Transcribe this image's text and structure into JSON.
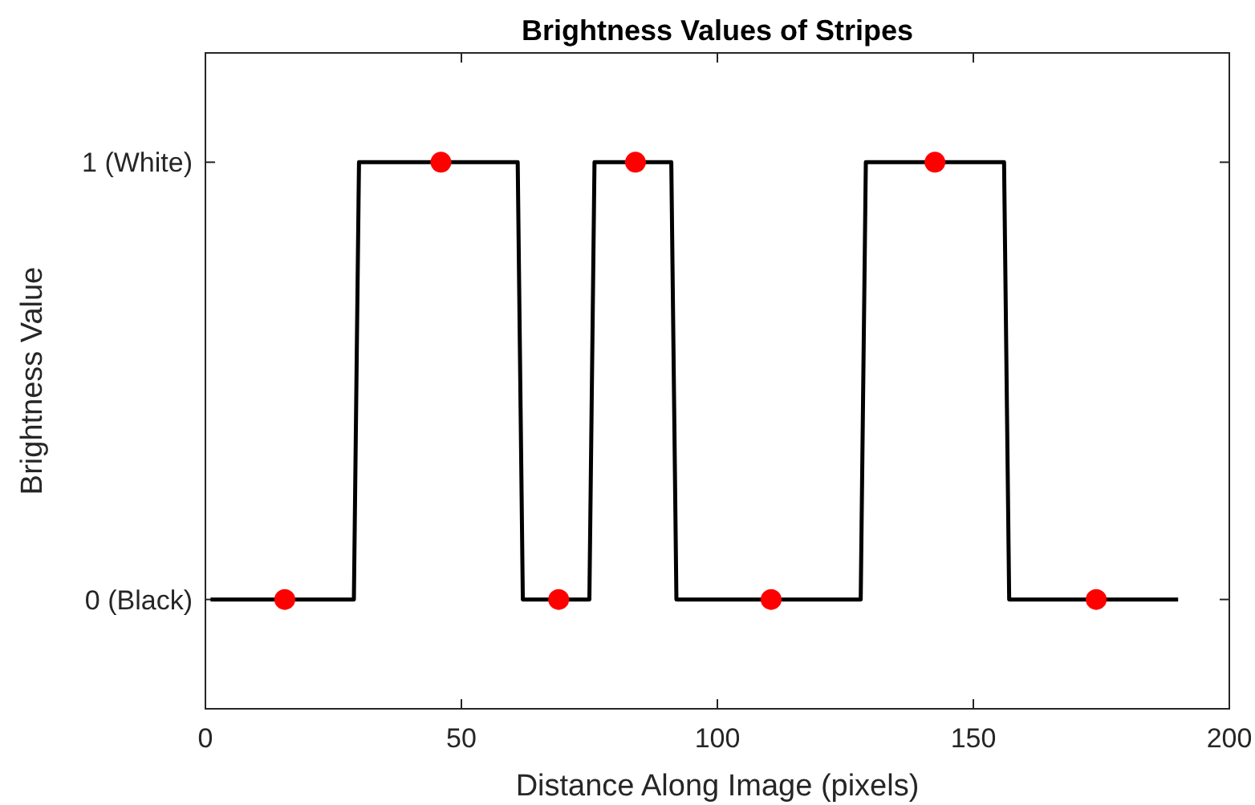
{
  "chart_data": {
    "type": "line",
    "title": "Brightness Values of Stripes",
    "xlabel": "Distance Along Image (pixels)",
    "ylabel": "Brightness Value",
    "xlim": [
      0,
      200
    ],
    "xticks": [
      0,
      50,
      100,
      150,
      200
    ],
    "ylim": [
      -0.25,
      1.25
    ],
    "yticks": [
      {
        "value": 0,
        "label": "0 (Black)"
      },
      {
        "value": 1,
        "label": "1 (White)"
      }
    ],
    "grid": false,
    "series": [
      {
        "color": "#000000",
        "marker": "none",
        "line_style": "solid",
        "x": [
          1,
          29,
          30,
          61,
          62,
          75,
          76,
          91,
          92,
          128,
          129,
          156,
          157,
          190
        ],
        "values": [
          0,
          0,
          1,
          1,
          0,
          0,
          1,
          1,
          0,
          0,
          1,
          1,
          0,
          0
        ]
      },
      {
        "type": "scatter",
        "color": "#ff0000",
        "marker": "circle",
        "x": [
          15.5,
          46,
          69,
          84,
          110.5,
          142.5,
          174
        ],
        "values": [
          0,
          1,
          0,
          1,
          0,
          1,
          0
        ]
      }
    ]
  }
}
